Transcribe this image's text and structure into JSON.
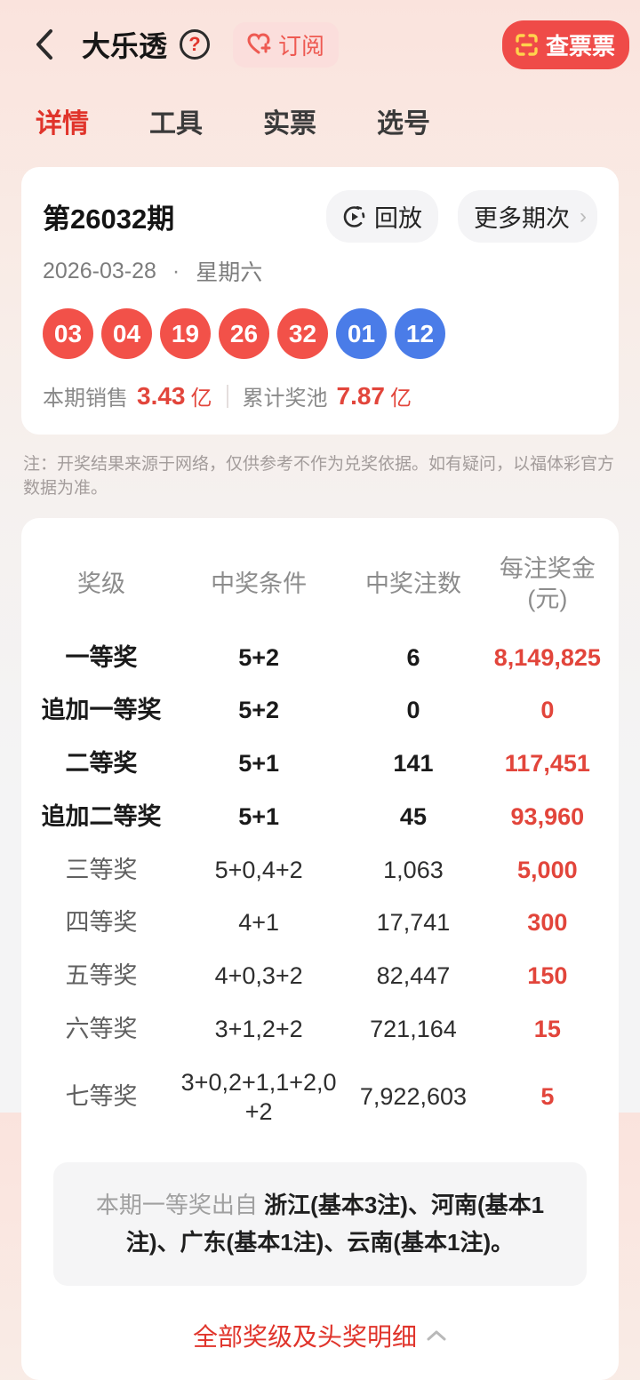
{
  "colors": {
    "accent_red": "#e0342b",
    "ball_red": "#f25149",
    "ball_blue": "#4a7ce8",
    "prize_red": "#e2453b"
  },
  "header": {
    "title": "大乐透",
    "help_label": "?",
    "subscribe_label": "订阅",
    "check_ticket_label": "查票票"
  },
  "tabs": [
    {
      "label": "详情",
      "active": true
    },
    {
      "label": "工具",
      "active": false
    },
    {
      "label": "实票",
      "active": false
    },
    {
      "label": "选号",
      "active": false
    }
  ],
  "draw": {
    "period": "第26032期",
    "replay_label": "回放",
    "more_label": "更多期次",
    "date": "2026-03-28",
    "separator": "·",
    "weekday": "星期六",
    "balls": [
      {
        "value": "03",
        "color": "red"
      },
      {
        "value": "04",
        "color": "red"
      },
      {
        "value": "19",
        "color": "red"
      },
      {
        "value": "26",
        "color": "red"
      },
      {
        "value": "32",
        "color": "red"
      },
      {
        "value": "01",
        "color": "blue"
      },
      {
        "value": "12",
        "color": "blue"
      }
    ],
    "sales_label": "本期销售",
    "sales_value": "3.43",
    "sales_unit": "亿",
    "pool_label": "累计奖池",
    "pool_value": "7.87",
    "pool_unit": "亿"
  },
  "note": "注：开奖结果来源于网络，仅供参考不作为兑奖依据。如有疑问，以福体彩官方数据为准。",
  "prize_table": {
    "headers": [
      "奖级",
      "中奖条件",
      "中奖注数",
      "每注奖金(元)"
    ],
    "rows": [
      {
        "level": "一等奖",
        "condition": "5+2",
        "count": "6",
        "prize": "8,149,825",
        "emphasis": true
      },
      {
        "level": "追加一等奖",
        "condition": "5+2",
        "count": "0",
        "prize": "0",
        "emphasis": true
      },
      {
        "level": "二等奖",
        "condition": "5+1",
        "count": "141",
        "prize": "117,451",
        "emphasis": true
      },
      {
        "level": "追加二等奖",
        "condition": "5+1",
        "count": "45",
        "prize": "93,960",
        "emphasis": true
      },
      {
        "level": "三等奖",
        "condition": "5+0,4+2",
        "count": "1,063",
        "prize": "5,000",
        "emphasis": false
      },
      {
        "level": "四等奖",
        "condition": "4+1",
        "count": "17,741",
        "prize": "300",
        "emphasis": false
      },
      {
        "level": "五等奖",
        "condition": "4+0,3+2",
        "count": "82,447",
        "prize": "150",
        "emphasis": false
      },
      {
        "level": "六等奖",
        "condition": "3+1,2+2",
        "count": "721,164",
        "prize": "15",
        "emphasis": false
      },
      {
        "level": "七等奖",
        "condition": "3+0,2+1,1+2,0+2",
        "count": "7,922,603",
        "prize": "5",
        "emphasis": false
      }
    ]
  },
  "winners": {
    "label": "本期一等奖出自",
    "detail": "浙江(基本3注)、河南(基本1注)、广东(基本1注)、云南(基本1注)。"
  },
  "footer_link": {
    "label": "全部奖级及头奖明细"
  }
}
